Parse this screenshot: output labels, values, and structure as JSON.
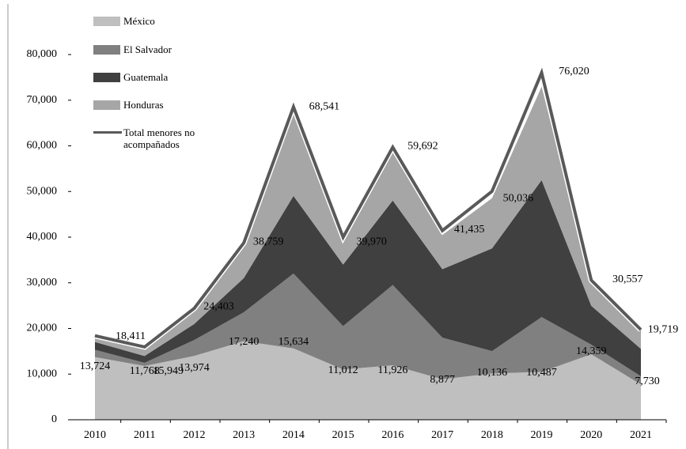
{
  "chart_data": {
    "type": "stacked-area",
    "categories": [
      "2010",
      "2011",
      "2012",
      "2013",
      "2014",
      "2015",
      "2016",
      "2017",
      "2018",
      "2019",
      "2020",
      "2021"
    ],
    "series": [
      {
        "name": "México",
        "color": "#bfbfbf",
        "values": [
          13724,
          11768,
          13974,
          17240,
          15634,
          11012,
          11926,
          8877,
          10136,
          10487,
          14359,
          7730
        ]
      },
      {
        "name": "El Salvador",
        "color": "#808080",
        "values": [
          1600,
          700,
          3500,
          6300,
          16400,
          9500,
          17600,
          9100,
          4900,
          12000,
          2100,
          1800
        ]
      },
      {
        "name": "Guatemala",
        "color": "#404040",
        "values": [
          1700,
          1500,
          3500,
          7500,
          17000,
          13500,
          18500,
          15000,
          22500,
          30000,
          8500,
          6000
        ]
      },
      {
        "name": "Honduras",
        "color": "#a6a6a6",
        "values": [
          1000,
          1900,
          3000,
          7000,
          18500,
          5500,
          11000,
          7500,
          11000,
          20500,
          5000,
          4000
        ]
      }
    ],
    "total": {
      "name": "Total menores no acompañados",
      "color": "#595959",
      "values": [
        18411,
        15949,
        24403,
        38759,
        68541,
        39970,
        59692,
        41435,
        50036,
        76020,
        30557,
        19719
      ],
      "value_labels": [
        "18,411",
        "15,949",
        "24,403",
        "38,759",
        "68,541",
        "39,970",
        "59,692",
        "41,435",
        "50,036",
        "76,020",
        "30,557",
        "19,719"
      ]
    },
    "base_value_labels": [
      "13,724",
      "11,768",
      "13,974",
      "17,240",
      "15,634",
      "11,012",
      "11,926",
      "8,877",
      "10,136",
      "10,487",
      "14,359",
      "7,730"
    ],
    "ylim": [
      0,
      80000
    ],
    "yticks": [
      0,
      {
        "value": 10000,
        "label": "10,000"
      },
      {
        "value": 20000,
        "label": "20,000"
      },
      {
        "value": 30000,
        "label": "30,000"
      },
      {
        "value": 40000,
        "label": "40,000"
      },
      {
        "value": 50000,
        "label": "50,000"
      },
      {
        "value": 60000,
        "label": "60,000"
      },
      {
        "value": 70000,
        "label": "70,000"
      },
      {
        "value": 80000,
        "label": "80,000"
      }
    ],
    "legend": "top-left"
  }
}
